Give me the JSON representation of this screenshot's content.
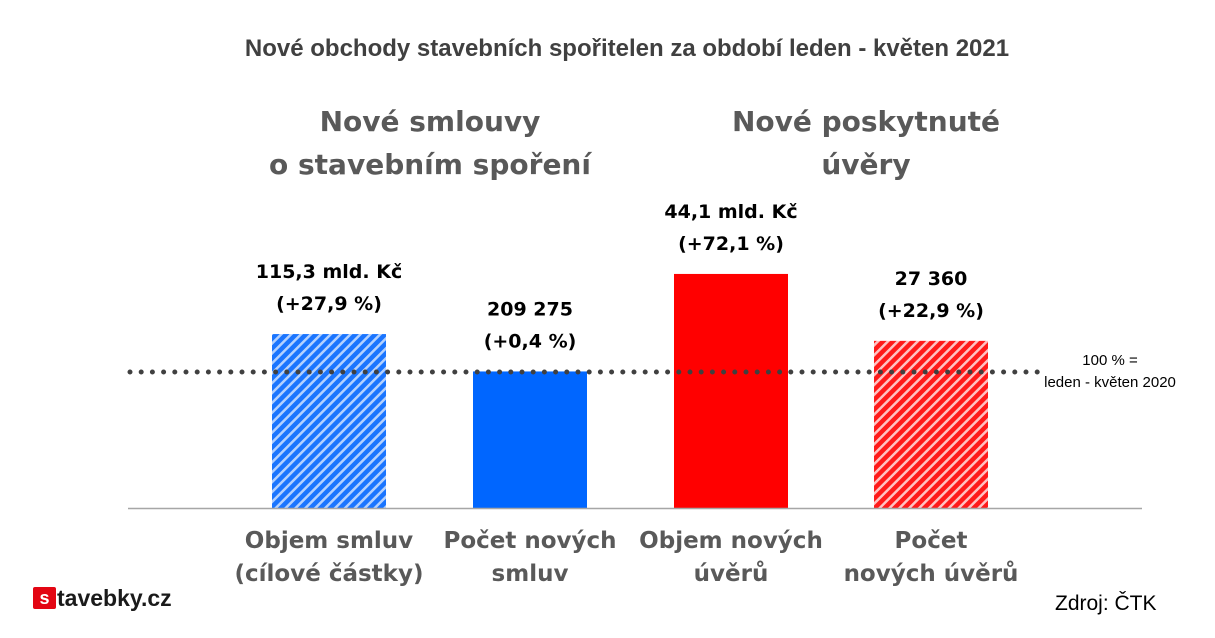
{
  "chart_data": {
    "type": "bar",
    "title": "Nové obchody stavebních spořitelen za období leden - květen 2021",
    "group_titles": [
      [
        "Nové smlouvy",
        "o stavebním spoření"
      ],
      [
        "Nové poskytnuté",
        "úvěry"
      ]
    ],
    "bars": [
      {
        "label": [
          "Objem smluv",
          "(cílové částky)"
        ],
        "value_pct": 127.9,
        "value_label": [
          "115,3 mld. Kč",
          "(+27,9 %)"
        ],
        "color": "#1a75ff",
        "pattern": "hatched"
      },
      {
        "label": [
          "Počet  nových",
          "smluv"
        ],
        "value_pct": 100.4,
        "value_label": [
          "209 275",
          "(+0,4 %)"
        ],
        "color": "#0066ff",
        "pattern": "solid"
      },
      {
        "label": [
          "Objem nových",
          "úvěrů"
        ],
        "value_pct": 172.1,
        "value_label": [
          "44,1 mld. Kč",
          "(+72,1 %)"
        ],
        "color": "#ff0000",
        "pattern": "solid"
      },
      {
        "label": [
          "Počet",
          "nových úvěrů"
        ],
        "value_pct": 122.9,
        "value_label": [
          "27 360",
          "(+22,9 %)"
        ],
        "color": "#ff1a1a",
        "pattern": "hatched"
      }
    ],
    "reference_line": {
      "value_pct": 100,
      "label": [
        "100 % =",
        "leden - květen 2020"
      ]
    },
    "ylim": [
      0,
      180
    ],
    "grid": false,
    "legend": "none"
  },
  "source": "Zdroj: ČTK",
  "logo": {
    "mark": "s",
    "text": "tavebky.cz"
  }
}
